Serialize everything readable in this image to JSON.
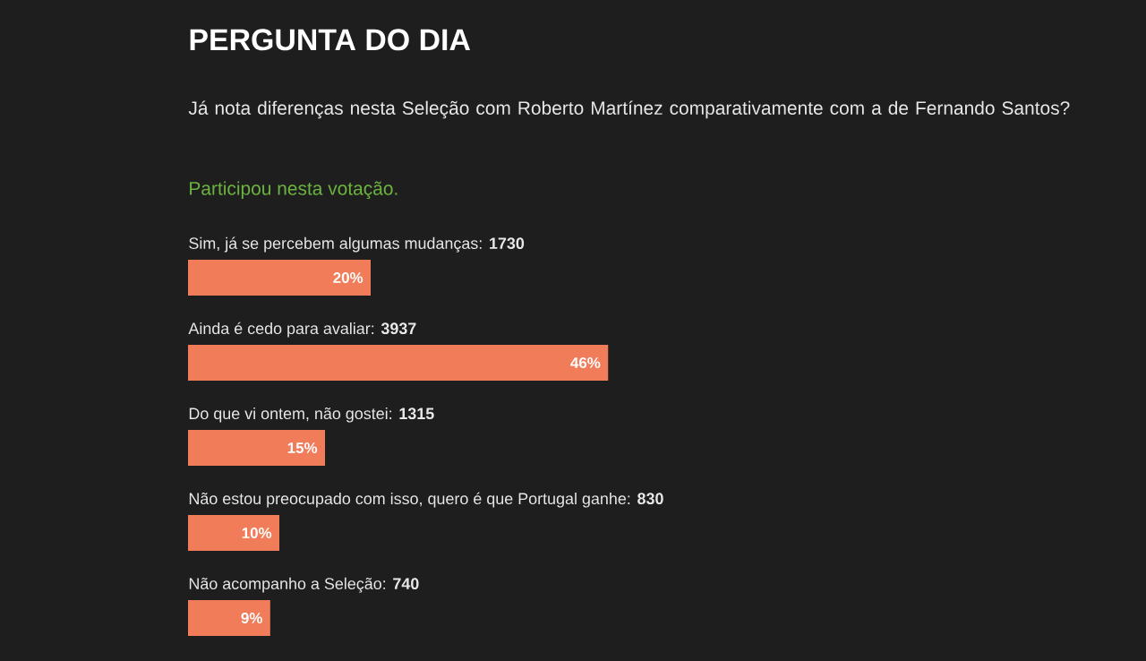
{
  "chart_data": {
    "type": "bar",
    "orientation": "horizontal",
    "title": "PERGUNTA DO DIA",
    "subtitle": "Já nota diferenças nesta Seleção com Roberto Martínez comparativamente com a de Fernando Santos?",
    "annotations": [
      "Participou nesta votação."
    ],
    "categories": [
      "Sim, já se percebem algumas mudanças:  **1730**",
      "Ainda é cedo para avaliar:  **3937**",
      "Do que vi ontem, não gostei:  **1315**",
      "Não estou preocupado com isso, quero é que Portugal ganhe:  **830**",
      "Não acompanho a Seleção:  **740**"
    ],
    "values": [
      20,
      46,
      15,
      10,
      9
    ],
    "value_labels": [
      "20%",
      "46%",
      "15%",
      "10%",
      "9%"
    ],
    "color": "#f07c5a"
  }
}
